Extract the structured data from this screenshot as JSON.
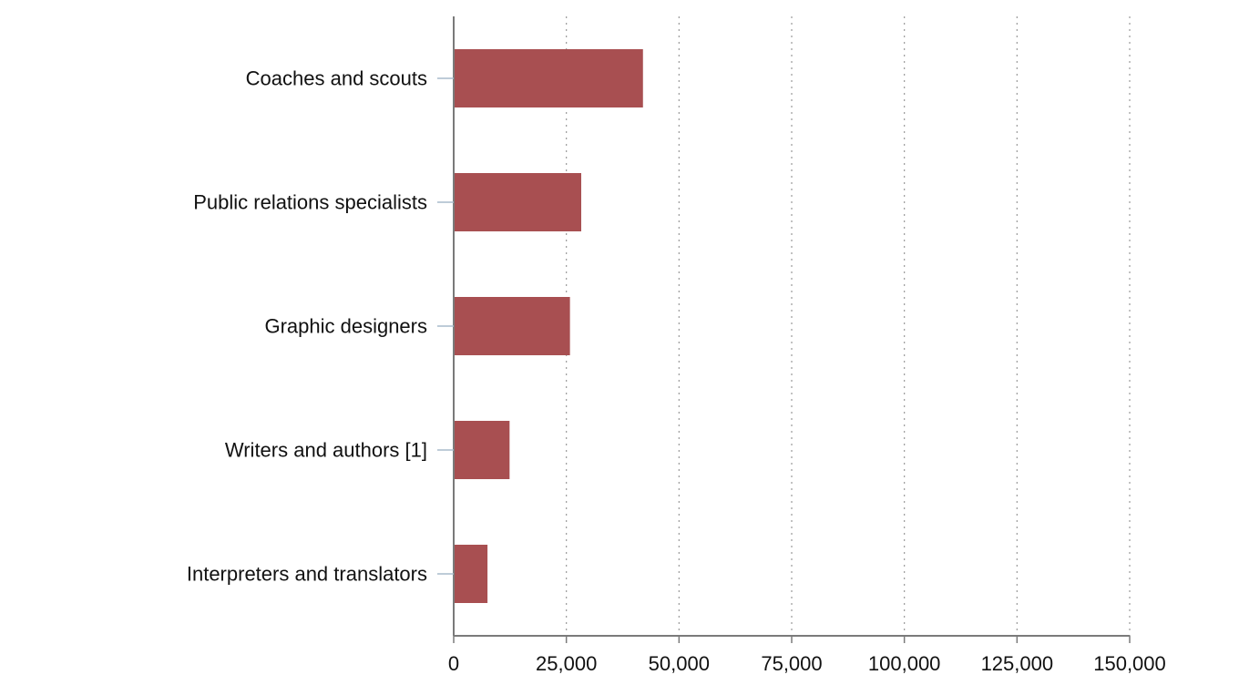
{
  "chart_data": {
    "type": "bar",
    "orientation": "horizontal",
    "categories": [
      "Coaches and scouts",
      "Public relations specialists",
      "Graphic designers",
      "Writers and authors [1]",
      "Interpreters and translators"
    ],
    "values": [
      42000,
      28300,
      25800,
      12400,
      7500
    ],
    "xticks": [
      0,
      25000,
      50000,
      75000,
      100000,
      125000,
      150000
    ],
    "xtick_labels": [
      "0",
      "25,000",
      "50,000",
      "75,000",
      "100,000",
      "125,000",
      "150,000"
    ],
    "xlim": [
      0,
      150000
    ],
    "grid": "vertical-dotted",
    "bar_color": "#a84f51"
  }
}
